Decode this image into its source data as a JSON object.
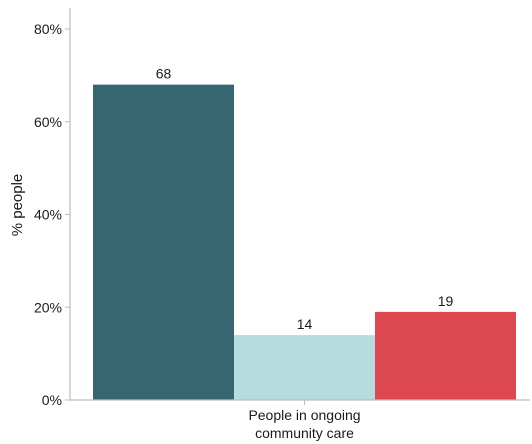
{
  "chart_data": {
    "type": "bar",
    "categories": [
      "People in ongoing community care"
    ],
    "category_label_lines": [
      "People in ongoing",
      "community care"
    ],
    "series": [
      {
        "values": [
          68
        ],
        "color": "#376671"
      },
      {
        "values": [
          14
        ],
        "color": "#b7dcdd"
      },
      {
        "values": [
          19
        ],
        "color": "#dc4750"
      }
    ],
    "ylabel": "% people",
    "ylim": [
      0,
      80
    ],
    "yticks": [
      0,
      20,
      40,
      60,
      80
    ],
    "ytick_labels": [
      "0%",
      "20%",
      "40%",
      "60%",
      "80%"
    ],
    "data_labels": [
      "68",
      "14",
      "19"
    ],
    "grid": false,
    "legend": "none"
  }
}
